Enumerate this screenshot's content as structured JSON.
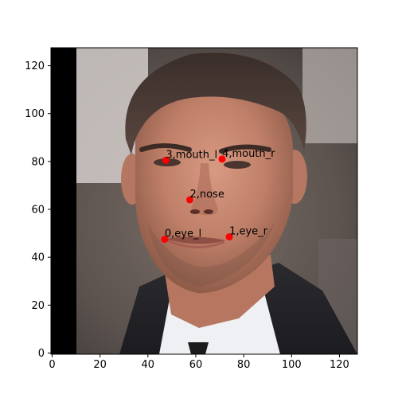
{
  "axes": {
    "x_ticks": [
      "0",
      "20",
      "40",
      "60",
      "80",
      "100",
      "120"
    ],
    "y_ticks": [
      "0",
      "20",
      "40",
      "60",
      "80",
      "100",
      "120"
    ],
    "xlim": [
      -0.5,
      127.5
    ],
    "ylim": [
      127.5,
      -0.5
    ],
    "y_inverted": true
  },
  "image": {
    "subject": "face photograph",
    "width": 128,
    "height": 128,
    "black_strip_cols": [
      0,
      10
    ]
  },
  "landmarks": [
    {
      "index": 0,
      "label": "0,eye_l",
      "x": 47,
      "y": 47.5
    },
    {
      "index": 1,
      "label": "1,eye_r",
      "x": 74,
      "y": 48.5
    },
    {
      "index": 2,
      "label": "2,nose",
      "x": 57.5,
      "y": 64
    },
    {
      "index": 3,
      "label": "3,mouth_l",
      "x": 47.5,
      "y": 80.5
    },
    {
      "index": 4,
      "label": "4,mouth_r",
      "x": 71,
      "y": 81
    }
  ],
  "colors": {
    "marker": "#ff0000",
    "label": "#000000",
    "axis": "#000000"
  }
}
